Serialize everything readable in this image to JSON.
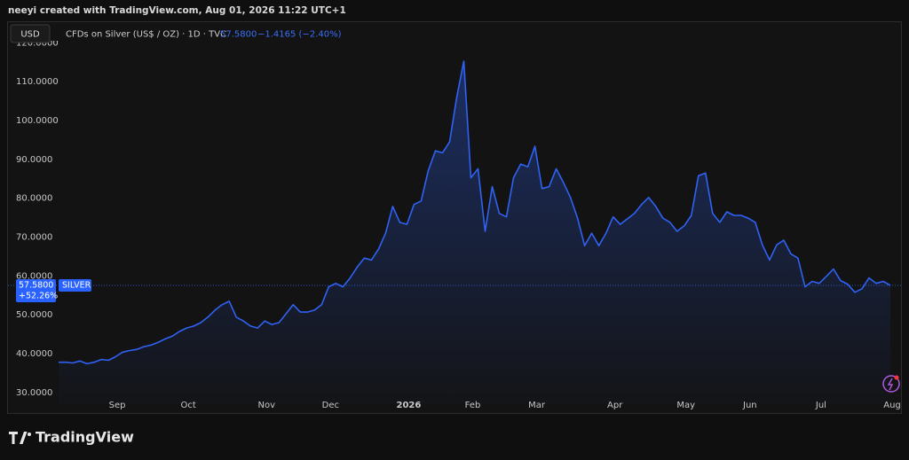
{
  "header": {
    "credit": "neeyi created with TradingView.com, Aug 01, 2026 11:22 UTC+1"
  },
  "footer": {
    "brand": "TradingView"
  },
  "chart_data": {
    "type": "line",
    "currency": "USD",
    "symbol_title": "CFDs on Silver (US$ / OZ) · 1D · TVC",
    "price": "57.5800",
    "change": "−1.4165 (−2.40%)",
    "symbol": "SILVER",
    "change_pct": "+52.26%",
    "categories": [
      null,
      null,
      null,
      null,
      null,
      null,
      null,
      null,
      "Sep",
      null,
      null,
      null,
      null,
      null,
      null,
      null,
      null,
      null,
      "Oct",
      null,
      null,
      null,
      null,
      null,
      null,
      null,
      null,
      null,
      null,
      "Nov",
      null,
      null,
      null,
      null,
      null,
      null,
      null,
      null,
      "Dec",
      null,
      null,
      null,
      null,
      null,
      null,
      null,
      null,
      null,
      null,
      "2026",
      null,
      null,
      null,
      null,
      null,
      null,
      null,
      null,
      "Feb",
      null,
      null,
      null,
      null,
      null,
      null,
      null,
      null,
      "Mar",
      null,
      null,
      null,
      null,
      null,
      null,
      null,
      null,
      null,
      null,
      "Apr",
      null,
      null,
      null,
      null,
      null,
      null,
      null,
      null,
      null,
      "May",
      null,
      null,
      null,
      null,
      null,
      null,
      null,
      null,
      "Jun",
      null,
      null,
      null,
      null,
      null,
      null,
      null,
      null,
      null,
      "Jul",
      null,
      null,
      null,
      null,
      null,
      null,
      null,
      null,
      null,
      "Aug"
    ],
    "series": [
      {
        "name": "SILVER",
        "color": "#2f62f5",
        "values": [
          37.8,
          37.8,
          37.6,
          38.1,
          37.4,
          37.8,
          38.5,
          38.3,
          39.2,
          40.4,
          40.8,
          41.1,
          41.8,
          42.2,
          42.9,
          43.8,
          44.5,
          45.7,
          46.6,
          47.1,
          48.0,
          49.4,
          51.2,
          52.6,
          53.5,
          49.4,
          48.4,
          47.1,
          46.6,
          48.4,
          47.5,
          48.0,
          50.3,
          52.6,
          50.7,
          50.7,
          51.2,
          52.6,
          57.2,
          58.1,
          57.2,
          59.5,
          62.3,
          64.6,
          64.1,
          66.9,
          71.0,
          77.9,
          73.8,
          73.3,
          78.4,
          79.3,
          87.1,
          92.2,
          91.7,
          94.5,
          106.0,
          115.3,
          85.3,
          87.6,
          71.5,
          83.0,
          76.1,
          75.2,
          85.3,
          88.8,
          88.1,
          93.4,
          82.5,
          83.0,
          87.6,
          84.1,
          80.2,
          74.9,
          67.8,
          71.0,
          67.8,
          71.0,
          75.2,
          73.3,
          74.7,
          76.1,
          78.4,
          80.2,
          77.9,
          74.9,
          73.8,
          71.5,
          72.9,
          75.6,
          85.8,
          86.5,
          76.1,
          73.8,
          76.5,
          75.6,
          75.6,
          74.9,
          73.8,
          68.0,
          64.1,
          68.0,
          69.2,
          65.7,
          64.6,
          57.2,
          58.6,
          58.1,
          59.9,
          61.8,
          58.8,
          57.9,
          55.8,
          56.7,
          59.5,
          58.1,
          58.6,
          57.58
        ],
        "value_labels": [
          null,
          null,
          null,
          null,
          null,
          null,
          null,
          null,
          null,
          null,
          null,
          null,
          null,
          null,
          null,
          null,
          null,
          null,
          null,
          null,
          null,
          null,
          null,
          null,
          null,
          null,
          null,
          null,
          null,
          null,
          null,
          null,
          null,
          null,
          null,
          null,
          null,
          null,
          null,
          null,
          null,
          null,
          null,
          null,
          null,
          null,
          null,
          null,
          null,
          null,
          null,
          null,
          null,
          null,
          null,
          null,
          null,
          null,
          null,
          null,
          null,
          null,
          null,
          null,
          null,
          null,
          null,
          null,
          null,
          null,
          null,
          null,
          null,
          null,
          null,
          null,
          null,
          null,
          null,
          null,
          null,
          null,
          null,
          null,
          null,
          null,
          null,
          null,
          null,
          null,
          null,
          null,
          null,
          null,
          null,
          null,
          null,
          null,
          null,
          null,
          null,
          null,
          null,
          null,
          null,
          null,
          null,
          null,
          null,
          null,
          null,
          null,
          null,
          null,
          null,
          null,
          null,
          "57.5800"
        ]
      }
    ],
    "ylim": [
      27,
      121
    ],
    "yticks": [
      {
        "value": 30,
        "label": "30.0000"
      },
      {
        "value": 40,
        "label": "40.0000"
      },
      {
        "value": 50,
        "label": "50.0000"
      },
      {
        "value": 60,
        "label": "60.0000"
      },
      {
        "value": 70,
        "label": "70.0000"
      },
      {
        "value": 80,
        "label": "80.0000"
      },
      {
        "value": 90,
        "label": "90.0000"
      },
      {
        "value": 100,
        "label": "100.0000"
      },
      {
        "value": 110,
        "label": "110.0000"
      },
      {
        "value": 120,
        "label": "120.0000"
      }
    ],
    "grid": false
  }
}
